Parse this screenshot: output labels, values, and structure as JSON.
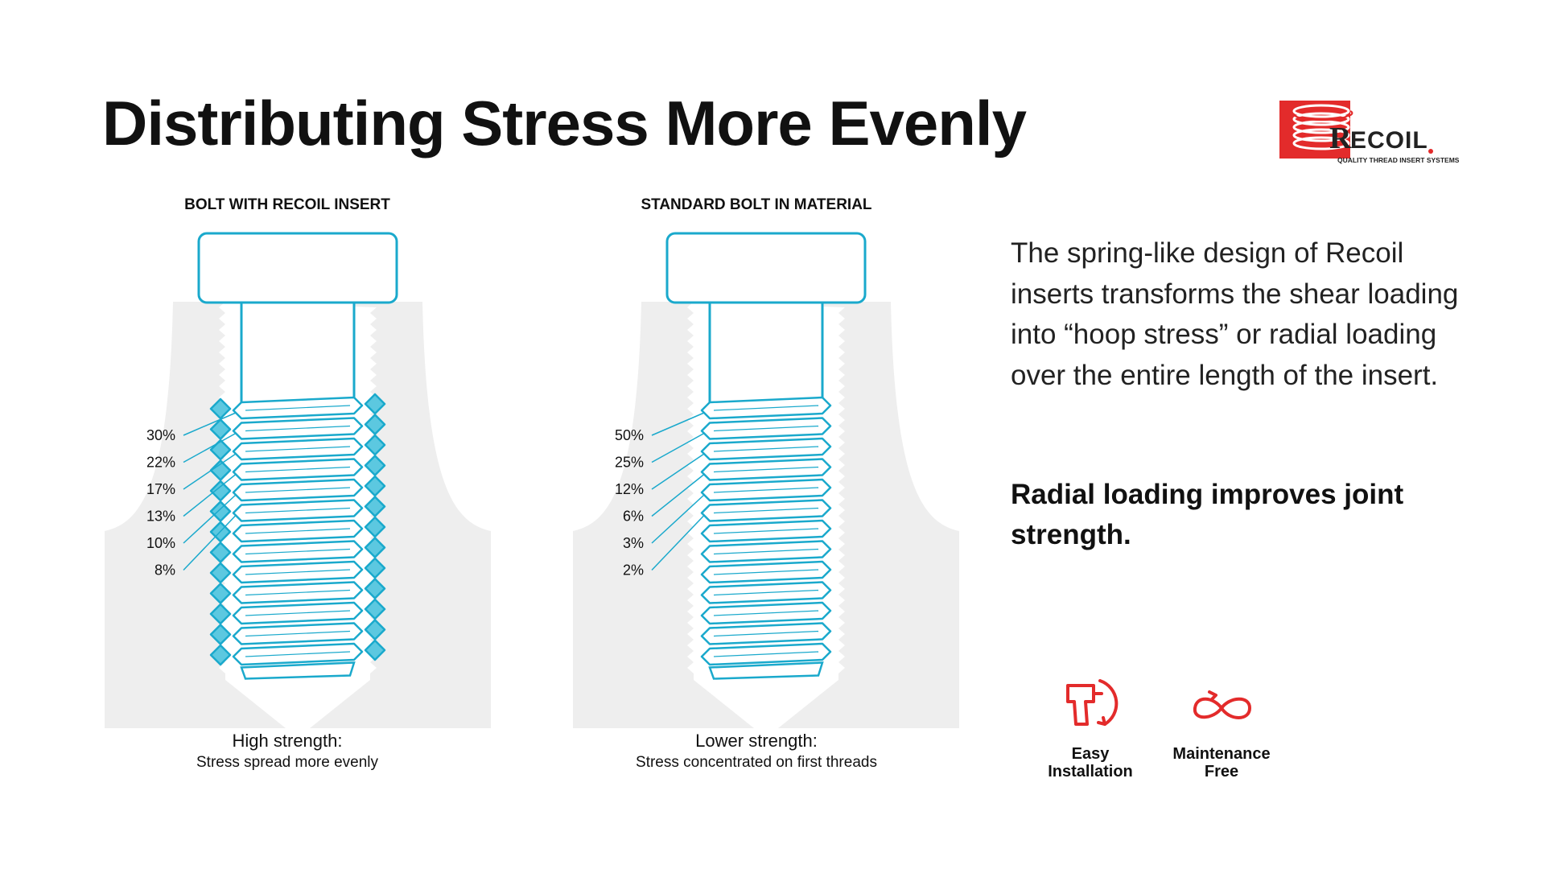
{
  "title": "Distributing Stress More Evenly",
  "logo": {
    "name": "RECOIL",
    "tagline": "QUALITY THREAD INSERT SYSTEMS",
    "brand_color": "#e32b2b"
  },
  "colors": {
    "thread": "#1aa9cc",
    "thread_fill": "#ffffff",
    "insert_fill": "#5cc8e0",
    "material": "#eeeeee",
    "accent_red": "#e32b2b"
  },
  "panels": [
    {
      "heading": "BOLT WITH RECOIL INSERT",
      "caption_main": "High strength:",
      "caption_sub": "Stress spread more evenly",
      "stress_labels": [
        "30%",
        "22%",
        "17%",
        "13%",
        "10%",
        "8%"
      ],
      "has_insert": true
    },
    {
      "heading": "STANDARD BOLT IN MATERIAL",
      "caption_main": "Lower strength:",
      "caption_sub": "Stress concentrated on first threads",
      "stress_labels": [
        "50%",
        "25%",
        "12%",
        "6%",
        "3%",
        "2%"
      ],
      "has_insert": false
    }
  ],
  "description": "The spring-like design of Recoil inserts transforms the shear loading into “hoop stress” or radial loading over the entire length of the insert.",
  "emphasis": "Radial loading improves joint strength.",
  "features": [
    {
      "icon": "drill-icon",
      "label_line1": "Easy",
      "label_line2": "Installation"
    },
    {
      "icon": "infinity-icon",
      "label_line1": "Maintenance",
      "label_line2": "Free"
    }
  ]
}
